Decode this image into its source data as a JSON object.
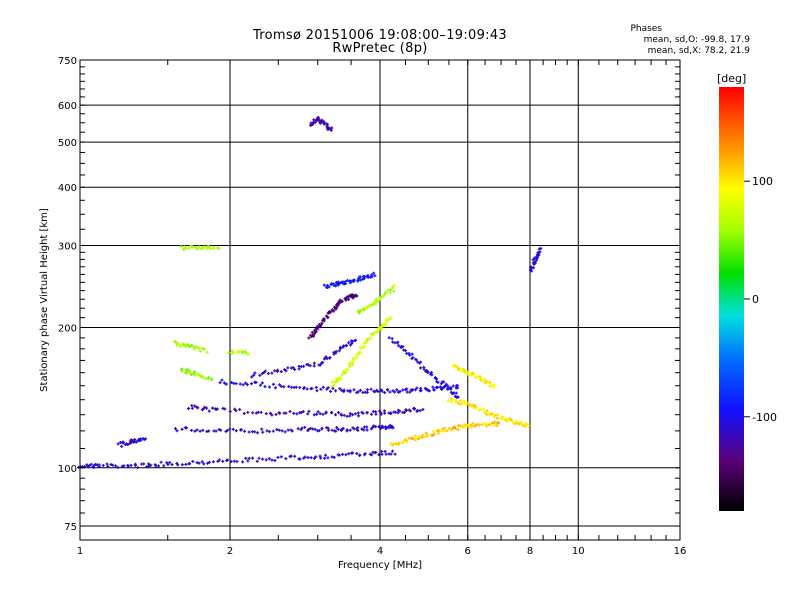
{
  "header": {
    "title_line1": "Tromsø 20151006 19:08:00–19:09:43",
    "title_line2": "RwPretec (8p)",
    "stats_title": "Phases",
    "stats_o": "mean, sd,O: -99.8, 17.9",
    "stats_x": "mean, sd,X:  78.2, 21.9"
  },
  "colorbar": {
    "unit_label": "[deg]",
    "ticks": [
      {
        "value": 100,
        "label": "100"
      },
      {
        "value": 0,
        "label": "0"
      },
      {
        "value": -100,
        "label": "-100"
      }
    ],
    "range": [
      -180,
      180
    ]
  },
  "chart_data": {
    "type": "scatter",
    "title": "",
    "xlabel": "Frequency [MHz]",
    "ylabel": "Stationary phase Virtual Height [km]",
    "xscale": "log",
    "yscale": "log",
    "xlim": [
      1,
      16
    ],
    "ylim": [
      70,
      750
    ],
    "xticks": [
      1,
      2,
      4,
      6,
      8,
      10,
      16
    ],
    "xtick_labels": [
      "1",
      "2",
      "4",
      "6",
      "8",
      "10",
      "16"
    ],
    "yticks": [
      75,
      100,
      200,
      300,
      400,
      500,
      600,
      750
    ],
    "ytick_labels": [
      "75",
      "100",
      "200",
      "300",
      "400",
      "500",
      "600",
      "750"
    ],
    "grid": true,
    "color_by": "phase (deg)",
    "traces": [
      {
        "x": [
          1.0,
          1.1,
          1.3,
          1.5,
          1.8,
          2.2,
          2.7,
          3.2,
          3.8,
          4.3
        ],
        "y": [
          101,
          101,
          101,
          102,
          103,
          104,
          105,
          106,
          107,
          108
        ],
        "phase": -110
      },
      {
        "x": [
          1.2,
          1.28,
          1.35
        ],
        "y": [
          112,
          114,
          116
        ],
        "phase": -110
      },
      {
        "x": [
          1.55,
          1.9,
          2.3,
          2.8,
          3.2,
          3.6,
          4.0,
          4.3
        ],
        "y": [
          121,
          120,
          120,
          121,
          121,
          121,
          122,
          123
        ],
        "phase": -110
      },
      {
        "x": [
          1.65,
          1.9,
          2.4,
          2.9,
          3.4,
          3.9,
          4.4,
          4.9
        ],
        "y": [
          135,
          133,
          131,
          131,
          130,
          131,
          132,
          134
        ],
        "phase": -115
      },
      {
        "x": [
          1.9,
          2.3,
          2.8,
          3.3,
          3.8,
          4.3,
          4.8,
          5.3,
          5.8
        ],
        "y": [
          153,
          151,
          148,
          147,
          146,
          146,
          147,
          148,
          150
        ],
        "phase": -105
      },
      {
        "x": [
          2.2,
          2.6,
          3.0,
          3.3,
          3.6
        ],
        "y": [
          158,
          162,
          167,
          178,
          190
        ],
        "phase": -110
      },
      {
        "x": [
          2.9,
          3.0,
          3.15,
          3.3,
          3.45,
          3.6
        ],
        "y": [
          190,
          200,
          214,
          225,
          232,
          235
        ],
        "phase": -140
      },
      {
        "x": [
          3.1,
          3.3,
          3.5,
          3.7,
          3.9
        ],
        "y": [
          245,
          248,
          252,
          256,
          260
        ],
        "phase": -90
      },
      {
        "x": [
          1.55,
          1.65,
          1.8
        ],
        "y": [
          185,
          182,
          178
        ],
        "phase": 60
      },
      {
        "x": [
          1.6,
          1.7,
          1.85
        ],
        "y": [
          162,
          159,
          155
        ],
        "phase": 55
      },
      {
        "x": [
          2.0,
          2.2
        ],
        "y": [
          177,
          176
        ],
        "phase": 65
      },
      {
        "x": [
          1.6,
          1.75,
          1.9
        ],
        "y": [
          297,
          296,
          296
        ],
        "phase": 60
      },
      {
        "x": [
          3.2,
          3.4,
          3.6,
          3.8,
          4.0,
          4.2
        ],
        "y": [
          150,
          160,
          175,
          190,
          200,
          210
        ],
        "phase": 75
      },
      {
        "x": [
          3.6,
          3.8,
          4.0,
          4.3
        ],
        "y": [
          215,
          222,
          230,
          245
        ],
        "phase": 65
      },
      {
        "x": [
          4.2,
          4.6,
          5.0,
          5.5,
          6.0,
          6.5,
          7.0
        ],
        "y": [
          112,
          115,
          118,
          121,
          123,
          124,
          124
        ],
        "phase": 110
      },
      {
        "x": [
          5.5,
          6.0,
          6.5,
          7.0,
          7.5,
          8.0
        ],
        "y": [
          140,
          137,
          132,
          128,
          125,
          123
        ],
        "phase": 100
      },
      {
        "x": [
          5.6,
          6.0,
          6.4,
          6.8
        ],
        "y": [
          165,
          160,
          155,
          148
        ],
        "phase": 95
      },
      {
        "x": [
          4.2,
          4.6,
          5.0,
          5.4,
          5.8
        ],
        "y": [
          190,
          175,
          160,
          150,
          140
        ],
        "phase": -105
      },
      {
        "x": [
          2.9,
          3.0,
          3.1,
          3.2
        ],
        "y": [
          545,
          560,
          548,
          530
        ],
        "phase": -120
      },
      {
        "x": [
          8.0,
          8.2,
          8.4
        ],
        "y": [
          265,
          280,
          295
        ],
        "phase": -110
      }
    ]
  }
}
